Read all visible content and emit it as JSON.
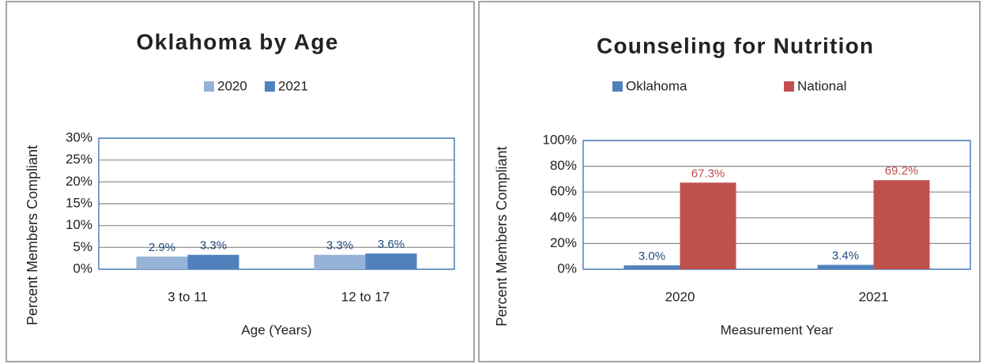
{
  "chart_data": [
    {
      "type": "bar",
      "title": "Oklahoma by Age",
      "categories": [
        "3 to 11",
        "12 to 17"
      ],
      "series": [
        {
          "name": "2020",
          "color": "#95b3d7",
          "values": [
            2.9,
            3.3
          ],
          "value_labels": [
            "2.9%",
            "3.3%"
          ]
        },
        {
          "name": "2021",
          "color": "#4f81bd",
          "values": [
            3.3,
            3.6
          ],
          "value_labels": [
            "3.3%",
            "3.6%"
          ]
        }
      ],
      "ylim": [
        0,
        30
      ],
      "yticks": [
        {
          "value": 0,
          "label": "0%"
        },
        {
          "value": 5,
          "label": "5%"
        },
        {
          "value": 10,
          "label": "10%"
        },
        {
          "value": 15,
          "label": "15%"
        },
        {
          "value": 20,
          "label": "20%"
        },
        {
          "value": 25,
          "label": "25%"
        },
        {
          "value": 30,
          "label": "30%"
        }
      ],
      "y_label": "Percent Members Compliant",
      "x_label": "Age (Years)",
      "grid": true,
      "legend": "top"
    },
    {
      "type": "bar",
      "title": "Counseling for Nutrition",
      "categories": [
        "2020",
        "2021"
      ],
      "series": [
        {
          "name": "Oklahoma",
          "color": "#4f81bd",
          "values": [
            3.0,
            3.4
          ],
          "value_labels": [
            "3.0%",
            "3.4%"
          ]
        },
        {
          "name": "National",
          "color": "#c0504d",
          "values": [
            67.3,
            69.2
          ],
          "value_labels": [
            "67.3%",
            "69.2%"
          ]
        }
      ],
      "ylim": [
        0,
        100
      ],
      "yticks": [
        {
          "value": 0,
          "label": "0%"
        },
        {
          "value": 20,
          "label": "20%"
        },
        {
          "value": 40,
          "label": "40%"
        },
        {
          "value": 60,
          "label": "60%"
        },
        {
          "value": 80,
          "label": "80%"
        },
        {
          "value": 100,
          "label": "100%"
        }
      ],
      "y_label": "Percent Members Compliant",
      "x_label": "Measurement Year",
      "grid": true,
      "legend": "top"
    }
  ]
}
